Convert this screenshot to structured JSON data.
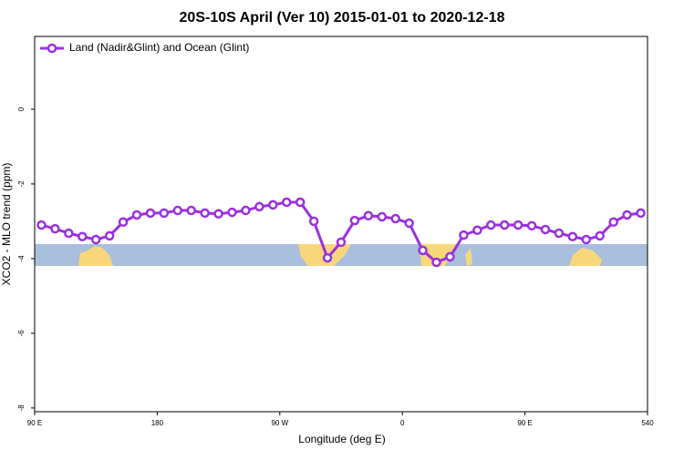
{
  "chart_data": {
    "type": "line",
    "title": "20S-10S April (Ver 10)   2015-01-01 to 2020-12-18",
    "x_label": "Longitude (deg E)",
    "y_label": "XCO2 - MLO trend (ppm)",
    "x": [
      95,
      105,
      115,
      125,
      135,
      145,
      155,
      165,
      175,
      185,
      195,
      205,
      215,
      225,
      235,
      245,
      255,
      265,
      275,
      285,
      295,
      305,
      315,
      325,
      335,
      345,
      355,
      365,
      375,
      385,
      395,
      405,
      415,
      425,
      435,
      445,
      455,
      465,
      475,
      485,
      495,
      505,
      515,
      525,
      535
    ],
    "series": [
      {
        "name": "Land (Nadir&Glint) and Ocean (Glint)",
        "color": "#9b30e0",
        "values": [
          -3.1,
          -3.2,
          -3.32,
          -3.41,
          -3.49,
          -3.39,
          -3.02,
          -2.83,
          -2.78,
          -2.78,
          -2.71,
          -2.71,
          -2.78,
          -2.8,
          -2.76,
          -2.71,
          -2.61,
          -2.56,
          -2.49,
          -2.49,
          -3.0,
          -3.98,
          -3.56,
          -2.98,
          -2.85,
          -2.88,
          -2.93,
          -3.05,
          -3.78,
          -4.1,
          -3.95,
          -3.37,
          -3.24,
          -3.1,
          -3.1,
          -3.1,
          -3.12,
          -3.22,
          -3.32,
          -3.41,
          -3.49,
          -3.39,
          -3.02,
          -2.83,
          -2.78
        ]
      }
    ],
    "xlim": [
      90,
      540
    ],
    "xticks": [
      {
        "value": 90,
        "label": "90 E"
      },
      180,
      {
        "value": 270,
        "label": "90 W"
      },
      {
        "value": 360,
        "label": "0"
      },
      {
        "value": 450,
        "label": "90 E"
      },
      540
    ],
    "ylim": [
      -8.1,
      1.95
    ],
    "yticks": [
      0,
      -2,
      -4,
      -6,
      -8
    ],
    "legend": "top-left"
  }
}
